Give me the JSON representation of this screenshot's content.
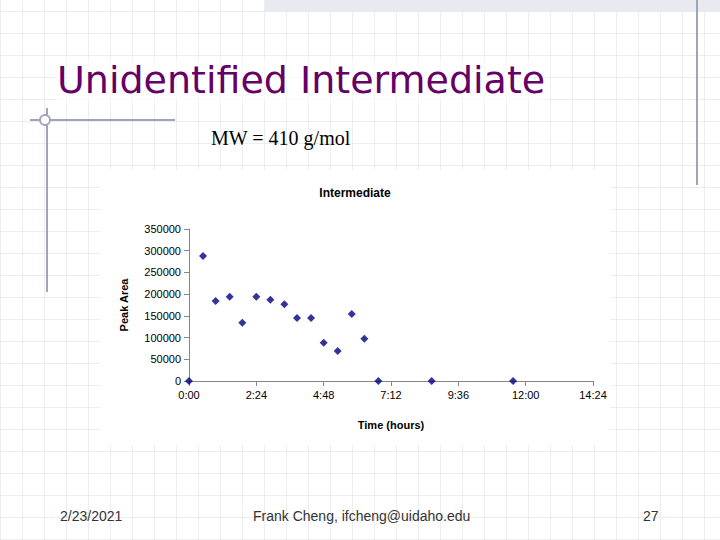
{
  "slide": {
    "title": "Unidentified Intermediate",
    "subtitle": "MW = 410 g/mol",
    "footer": {
      "date": "2/23/2021",
      "author": "Frank Cheng, ifcheng@uidaho.edu",
      "page": "27"
    }
  },
  "chart_data": {
    "type": "scatter",
    "title": "Intermediate",
    "x_label": "Time (hours)",
    "y_label": "Peak Area",
    "x": [
      0,
      0.5,
      0.95,
      1.45,
      1.9,
      2.4,
      2.9,
      3.4,
      3.85,
      4.35,
      4.8,
      5.3,
      5.8,
      6.25,
      6.75,
      8.65,
      11.55
    ],
    "values": [
      0,
      288000,
      184000,
      194000,
      134000,
      194000,
      187000,
      177000,
      145000,
      145000,
      88000,
      69000,
      154000,
      97000,
      0,
      0,
      0
    ],
    "color": "#000080",
    "marker": "diamond",
    "xlim": [
      0,
      14.4
    ],
    "xticks": [
      {
        "value": 0,
        "label": "0:00"
      },
      {
        "value": 2.4,
        "label": "2:24"
      },
      {
        "value": 4.8,
        "label": "4:48"
      },
      {
        "value": 7.2,
        "label": "7:12"
      },
      {
        "value": 9.6,
        "label": "9:36"
      },
      {
        "value": 12,
        "label": "12:00"
      },
      {
        "value": 14.4,
        "label": "14:24"
      }
    ],
    "ylim": [
      0,
      350000
    ],
    "yticks": [
      0,
      50000,
      100000,
      150000,
      200000,
      250000,
      300000,
      350000
    ],
    "grid": false
  }
}
